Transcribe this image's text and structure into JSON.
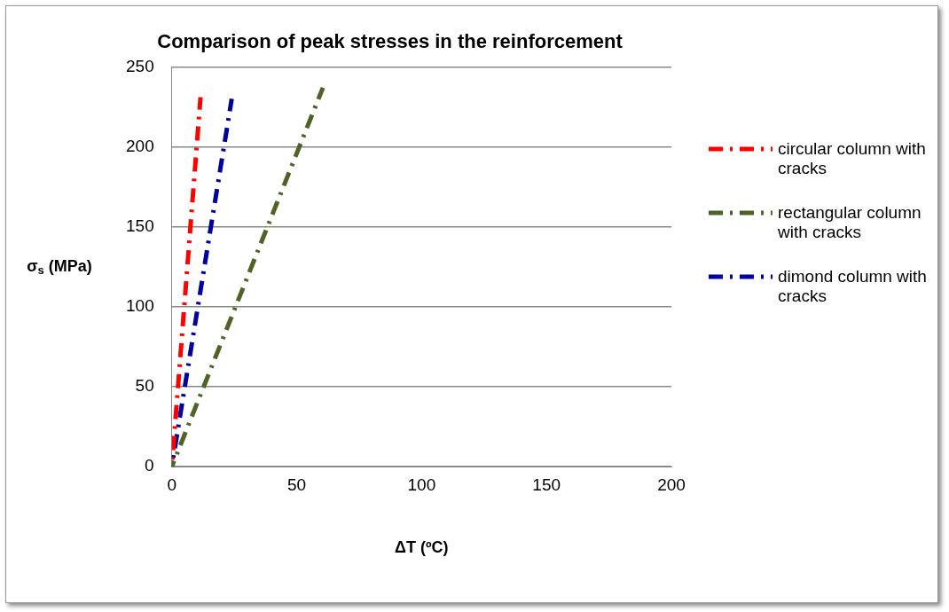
{
  "chart_data": {
    "type": "line",
    "title": "Comparison of peak stresses in the reinforcement",
    "xlabel": "ΔT (ºC)",
    "ylabel": "σ$_{s}$ (MPa)",
    "series": [
      {
        "name": "circular column with cracks",
        "color": "#ff0000",
        "x": [
          0,
          11.5
        ],
        "values": [
          0,
          231
        ]
      },
      {
        "name": "rectangular column with cracks",
        "color": "#4f6228",
        "x": [
          0,
          60.5
        ],
        "values": [
          0,
          237
        ]
      },
      {
        "name": "dimond column with cracks",
        "color": "#00009a",
        "x": [
          0,
          24
        ],
        "values": [
          0,
          230
        ]
      }
    ],
    "xlim": [
      0,
      200
    ],
    "xticks": [
      0,
      50,
      100,
      150,
      200
    ],
    "ylim": [
      0,
      250
    ],
    "yticks": [
      0,
      50,
      100,
      150,
      200,
      250
    ],
    "grid": "y",
    "legend": "right",
    "marker": "none",
    "line_style": "dashed"
  }
}
